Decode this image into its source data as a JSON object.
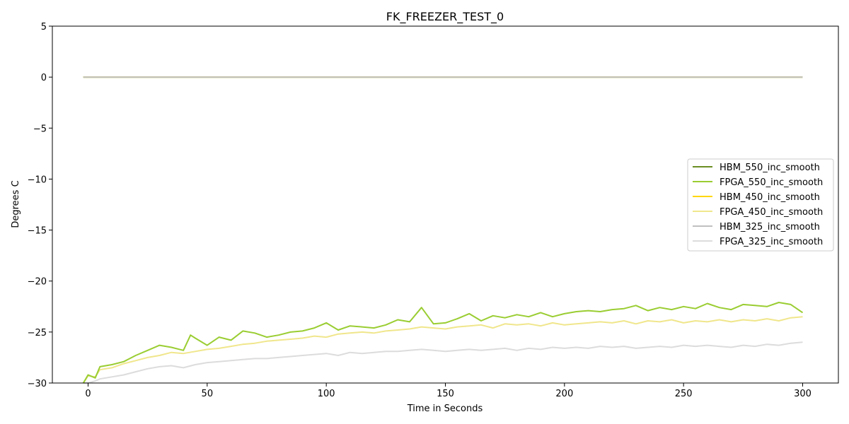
{
  "chart_data": {
    "type": "line",
    "title": "FK_FREEZER_TEST_0",
    "xlabel": "Time in Seconds",
    "ylabel": "Degrees C",
    "xlim": [
      -15,
      315
    ],
    "ylim": [
      -30,
      5
    ],
    "xticks": [
      0,
      50,
      100,
      150,
      200,
      250,
      300
    ],
    "yticks": [
      5,
      0,
      -5,
      -10,
      -15,
      -20,
      -25,
      -30
    ],
    "xtick_labels": [
      "0",
      "50",
      "100",
      "150",
      "200",
      "250",
      "300"
    ],
    "ytick_labels": [
      "5",
      "0",
      "−5",
      "−10",
      "−15",
      "−20",
      "−25",
      "−30"
    ],
    "legend_position": "center-right",
    "grid": false,
    "series": [
      {
        "name": "HBM_550_inc_smooth",
        "color": "#6b8e23",
        "x": [
          -2,
          300
        ],
        "y": [
          0,
          0
        ]
      },
      {
        "name": "FPGA_550_inc_smooth",
        "color": "#9acd32",
        "x": [
          -2,
          0,
          3,
          5,
          10,
          15,
          20,
          25,
          30,
          35,
          40,
          43,
          45,
          50,
          55,
          60,
          65,
          70,
          75,
          80,
          85,
          90,
          95,
          100,
          105,
          110,
          115,
          120,
          125,
          130,
          135,
          140,
          145,
          150,
          155,
          160,
          165,
          170,
          175,
          180,
          185,
          190,
          195,
          200,
          205,
          210,
          215,
          220,
          225,
          230,
          235,
          240,
          245,
          250,
          255,
          260,
          265,
          270,
          275,
          280,
          285,
          290,
          295,
          300
        ],
        "y": [
          -30,
          -29.2,
          -29.5,
          -28.4,
          -28.2,
          -27.9,
          -27.3,
          -26.8,
          -26.3,
          -26.5,
          -26.8,
          -25.3,
          -25.6,
          -26.3,
          -25.5,
          -25.8,
          -24.9,
          -25.1,
          -25.5,
          -25.3,
          -25.0,
          -24.9,
          -24.6,
          -24.1,
          -24.8,
          -24.4,
          -24.5,
          -24.6,
          -24.3,
          -23.8,
          -24.0,
          -22.6,
          -24.2,
          -24.1,
          -23.7,
          -23.2,
          -23.9,
          -23.4,
          -23.6,
          -23.3,
          -23.5,
          -23.1,
          -23.5,
          -23.2,
          -23.0,
          -22.9,
          -23.0,
          -22.8,
          -22.7,
          -22.4,
          -22.9,
          -22.6,
          -22.8,
          -22.5,
          -22.7,
          -22.2,
          -22.6,
          -22.8,
          -22.3,
          -22.4,
          -22.5,
          -22.1,
          -22.3,
          -23.1
        ]
      },
      {
        "name": "HBM_450_inc_smooth",
        "color": "#ffd700",
        "x": [
          -2,
          300
        ],
        "y": [
          0,
          0
        ]
      },
      {
        "name": "FPGA_450_inc_smooth",
        "color": "#f0e68c",
        "x": [
          -2,
          0,
          3,
          5,
          10,
          15,
          20,
          25,
          30,
          35,
          40,
          45,
          50,
          55,
          60,
          65,
          70,
          75,
          80,
          85,
          90,
          95,
          100,
          105,
          110,
          115,
          120,
          125,
          130,
          135,
          140,
          145,
          150,
          155,
          160,
          165,
          170,
          175,
          180,
          185,
          190,
          195,
          200,
          205,
          210,
          215,
          220,
          225,
          230,
          235,
          240,
          245,
          250,
          255,
          260,
          265,
          270,
          275,
          280,
          285,
          290,
          295,
          300
        ],
        "y": [
          -30,
          -29.3,
          -29.4,
          -28.7,
          -28.5,
          -28.1,
          -27.8,
          -27.5,
          -27.3,
          -27.0,
          -27.1,
          -26.9,
          -26.7,
          -26.6,
          -26.4,
          -26.2,
          -26.1,
          -25.9,
          -25.8,
          -25.7,
          -25.6,
          -25.4,
          -25.5,
          -25.2,
          -25.1,
          -25.0,
          -25.1,
          -24.9,
          -24.8,
          -24.7,
          -24.5,
          -24.6,
          -24.7,
          -24.5,
          -24.4,
          -24.3,
          -24.6,
          -24.2,
          -24.3,
          -24.2,
          -24.4,
          -24.1,
          -24.3,
          -24.2,
          -24.1,
          -24.0,
          -24.1,
          -23.9,
          -24.2,
          -23.9,
          -24.0,
          -23.8,
          -24.1,
          -23.9,
          -24.0,
          -23.8,
          -24.0,
          -23.8,
          -23.9,
          -23.7,
          -23.9,
          -23.6,
          -23.5
        ]
      },
      {
        "name": "HBM_325_inc_smooth",
        "color": "#c0c0c0",
        "x": [
          -2,
          300
        ],
        "y": [
          0,
          0
        ]
      },
      {
        "name": "FPGA_325_inc_smooth",
        "color": "#dcdcdc",
        "x": [
          -2,
          0,
          3,
          5,
          10,
          15,
          20,
          25,
          30,
          35,
          40,
          45,
          50,
          55,
          60,
          65,
          70,
          75,
          80,
          85,
          90,
          95,
          100,
          105,
          110,
          115,
          120,
          125,
          130,
          135,
          140,
          145,
          150,
          155,
          160,
          165,
          170,
          175,
          180,
          185,
          190,
          195,
          200,
          205,
          210,
          215,
          220,
          225,
          230,
          235,
          240,
          245,
          250,
          255,
          260,
          265,
          270,
          275,
          280,
          285,
          290,
          295,
          300
        ],
        "y": [
          -30,
          -30.0,
          -29.8,
          -29.6,
          -29.4,
          -29.2,
          -28.9,
          -28.6,
          -28.4,
          -28.3,
          -28.5,
          -28.2,
          -28.0,
          -27.9,
          -27.8,
          -27.7,
          -27.6,
          -27.6,
          -27.5,
          -27.4,
          -27.3,
          -27.2,
          -27.1,
          -27.3,
          -27.0,
          -27.1,
          -27.0,
          -26.9,
          -26.9,
          -26.8,
          -26.7,
          -26.8,
          -26.9,
          -26.8,
          -26.7,
          -26.8,
          -26.7,
          -26.6,
          -26.8,
          -26.6,
          -26.7,
          -26.5,
          -26.6,
          -26.5,
          -26.6,
          -26.4,
          -26.5,
          -26.4,
          -26.6,
          -26.5,
          -26.4,
          -26.5,
          -26.3,
          -26.4,
          -26.3,
          -26.4,
          -26.5,
          -26.3,
          -26.4,
          -26.2,
          -26.3,
          -26.1,
          -26.0
        ]
      }
    ]
  }
}
